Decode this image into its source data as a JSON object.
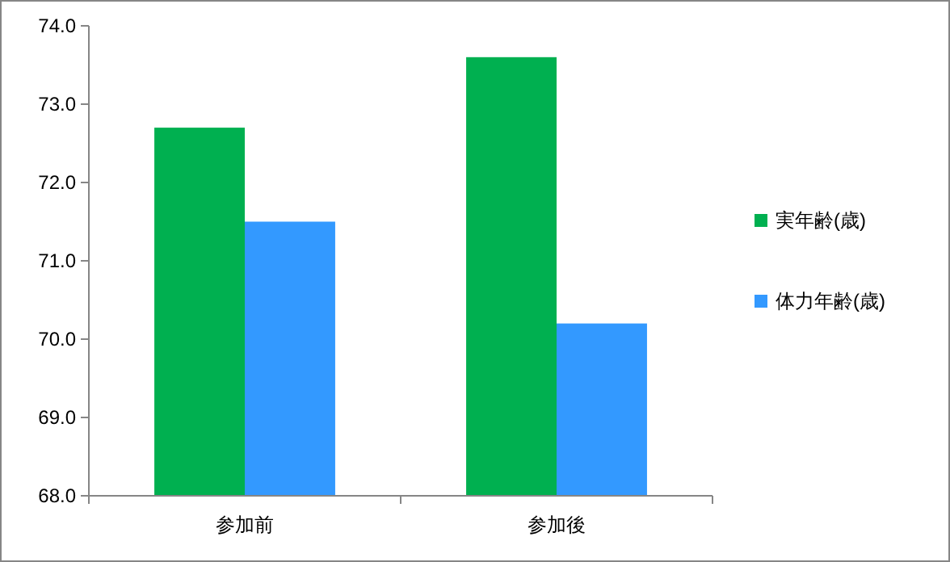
{
  "chart_data": {
    "type": "bar",
    "categories": [
      "参加前",
      "参加後"
    ],
    "series": [
      {
        "name": "実年齢(歳)",
        "color": "#00b050",
        "values": [
          72.7,
          73.6
        ]
      },
      {
        "name": "体力年齢(歳)",
        "color": "#3399ff",
        "values": [
          71.5,
          70.2
        ]
      }
    ],
    "ylim": [
      68,
      74
    ],
    "yticks": [
      {
        "value": 68,
        "label": "68.0"
      },
      {
        "value": 69,
        "label": "69.0"
      },
      {
        "value": 70,
        "label": "70.0"
      },
      {
        "value": 71,
        "label": "71.0"
      },
      {
        "value": 72,
        "label": "72.0"
      },
      {
        "value": 73,
        "label": "73.0"
      },
      {
        "value": 74,
        "label": "74.0"
      }
    ],
    "grid": false,
    "legend": "right"
  }
}
